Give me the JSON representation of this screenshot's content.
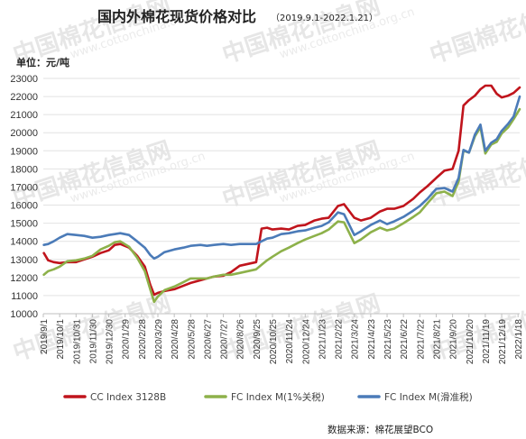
{
  "watermark": {
    "name": "中国棉花信息网",
    "url": "www.cottonchina.org.cn"
  },
  "chart_data": {
    "type": "line",
    "title": "国内外棉花现货价格对比",
    "subtitle": "（2019.9.1-2022.1.21）",
    "ylabel": "单位：元/吨",
    "xlabel": "",
    "ylim": [
      10000,
      23000
    ],
    "yticks": [
      10000,
      11000,
      12000,
      13000,
      14000,
      15000,
      16000,
      17000,
      18000,
      19000,
      20000,
      21000,
      22000,
      23000
    ],
    "xlim": [
      "2019-09-01",
      "2022-01-21"
    ],
    "x_ticks": [
      "2019/9/1",
      "2019/10/1",
      "2019/10/31",
      "2019/11/30",
      "2019/12/30",
      "2020/1/29",
      "2020/2/28",
      "2020/3/29",
      "2020/4/28",
      "2020/5/28",
      "2020/6/27",
      "2020/7/27",
      "2020/8/26",
      "2020/9/25",
      "2020/10/25",
      "2020/11/24",
      "2020/12/24",
      "2021/1/23",
      "2021/2/22",
      "2021/3/24",
      "2021/4/23",
      "2021/5/23",
      "2021/6/22",
      "2021/7/22",
      "2021/8/21",
      "2021/9/20",
      "2021/10/20",
      "2021/11/19",
      "2021/12/19",
      "2022/1/18"
    ],
    "grid": "horizontal",
    "legend_position": "bottom",
    "series": [
      {
        "name": "CC Index 3128B",
        "color": "#c0141c",
        "points": [
          [
            "2019-09-02",
            13350
          ],
          [
            "2019-09-10",
            12950
          ],
          [
            "2019-09-20",
            12850
          ],
          [
            "2019-10-01",
            12800
          ],
          [
            "2019-10-15",
            12850
          ],
          [
            "2019-10-31",
            12850
          ],
          [
            "2019-11-15",
            13000
          ],
          [
            "2019-11-30",
            13150
          ],
          [
            "2019-12-15",
            13350
          ],
          [
            "2019-12-30",
            13500
          ],
          [
            "2020-01-10",
            13800
          ],
          [
            "2020-01-20",
            13850
          ],
          [
            "2020-02-05",
            13650
          ],
          [
            "2020-02-20",
            13200
          ],
          [
            "2020-03-05",
            12600
          ],
          [
            "2020-03-15",
            11600
          ],
          [
            "2020-03-22",
            11050
          ],
          [
            "2020-03-29",
            11150
          ],
          [
            "2020-04-10",
            11250
          ],
          [
            "2020-04-28",
            11350
          ],
          [
            "2020-05-15",
            11550
          ],
          [
            "2020-05-28",
            11700
          ],
          [
            "2020-06-15",
            11850
          ],
          [
            "2020-06-27",
            11950
          ],
          [
            "2020-07-10",
            12050
          ],
          [
            "2020-07-27",
            12100
          ],
          [
            "2020-08-10",
            12300
          ],
          [
            "2020-08-26",
            12650
          ],
          [
            "2020-09-10",
            12750
          ],
          [
            "2020-09-25",
            12850
          ],
          [
            "2020-10-05",
            14700
          ],
          [
            "2020-10-15",
            14750
          ],
          [
            "2020-10-25",
            14650
          ],
          [
            "2020-11-10",
            14700
          ],
          [
            "2020-11-24",
            14650
          ],
          [
            "2020-12-10",
            14850
          ],
          [
            "2020-12-24",
            14900
          ],
          [
            "2021-01-10",
            15150
          ],
          [
            "2021-01-23",
            15250
          ],
          [
            "2021-02-05",
            15300
          ],
          [
            "2021-02-22",
            15950
          ],
          [
            "2021-03-05",
            16050
          ],
          [
            "2021-03-24",
            15300
          ],
          [
            "2021-04-05",
            15150
          ],
          [
            "2021-04-23",
            15300
          ],
          [
            "2021-05-10",
            15650
          ],
          [
            "2021-05-23",
            15800
          ],
          [
            "2021-06-05",
            15800
          ],
          [
            "2021-06-22",
            15950
          ],
          [
            "2021-07-10",
            16350
          ],
          [
            "2021-07-22",
            16700
          ],
          [
            "2021-08-05",
            17050
          ],
          [
            "2021-08-21",
            17500
          ],
          [
            "2021-09-05",
            17900
          ],
          [
            "2021-09-20",
            18000
          ],
          [
            "2021-10-01",
            19000
          ],
          [
            "2021-10-10",
            21500
          ],
          [
            "2021-10-20",
            21800
          ],
          [
            "2021-10-31",
            22050
          ],
          [
            "2021-11-10",
            22400
          ],
          [
            "2021-11-19",
            22600
          ],
          [
            "2021-11-30",
            22600
          ],
          [
            "2021-12-10",
            22150
          ],
          [
            "2021-12-19",
            21950
          ],
          [
            "2021-12-31",
            22050
          ],
          [
            "2022-01-10",
            22200
          ],
          [
            "2022-01-21",
            22500
          ]
        ]
      },
      {
        "name": "FC Index M(1%关税)",
        "color": "#8db14a",
        "points": [
          [
            "2019-09-02",
            12150
          ],
          [
            "2019-09-10",
            12350
          ],
          [
            "2019-09-20",
            12450
          ],
          [
            "2019-10-01",
            12600
          ],
          [
            "2019-10-15",
            12900
          ],
          [
            "2019-10-31",
            12950
          ],
          [
            "2019-11-15",
            13050
          ],
          [
            "2019-11-30",
            13200
          ],
          [
            "2019-12-15",
            13550
          ],
          [
            "2019-12-30",
            13750
          ],
          [
            "2020-01-10",
            13950
          ],
          [
            "2020-01-20",
            14000
          ],
          [
            "2020-02-05",
            13700
          ],
          [
            "2020-02-20",
            13100
          ],
          [
            "2020-03-05",
            12350
          ],
          [
            "2020-03-15",
            11350
          ],
          [
            "2020-03-22",
            10650
          ],
          [
            "2020-03-29",
            10950
          ],
          [
            "2020-04-10",
            11300
          ],
          [
            "2020-04-28",
            11500
          ],
          [
            "2020-05-15",
            11750
          ],
          [
            "2020-05-28",
            11950
          ],
          [
            "2020-06-15",
            11950
          ],
          [
            "2020-06-27",
            11950
          ],
          [
            "2020-07-10",
            12050
          ],
          [
            "2020-07-27",
            12150
          ],
          [
            "2020-08-10",
            12150
          ],
          [
            "2020-08-26",
            12250
          ],
          [
            "2020-09-10",
            12350
          ],
          [
            "2020-09-25",
            12450
          ],
          [
            "2020-10-05",
            12700
          ],
          [
            "2020-10-15",
            12950
          ],
          [
            "2020-10-25",
            13150
          ],
          [
            "2020-11-10",
            13450
          ],
          [
            "2020-11-24",
            13650
          ],
          [
            "2020-12-10",
            13900
          ],
          [
            "2020-12-24",
            14100
          ],
          [
            "2021-01-10",
            14300
          ],
          [
            "2021-01-23",
            14450
          ],
          [
            "2021-02-05",
            14650
          ],
          [
            "2021-02-22",
            15100
          ],
          [
            "2021-03-05",
            15050
          ],
          [
            "2021-03-24",
            13900
          ],
          [
            "2021-04-05",
            14100
          ],
          [
            "2021-04-23",
            14500
          ],
          [
            "2021-05-10",
            14750
          ],
          [
            "2021-05-23",
            14600
          ],
          [
            "2021-06-05",
            14700
          ],
          [
            "2021-06-22",
            15000
          ],
          [
            "2021-07-10",
            15350
          ],
          [
            "2021-07-22",
            15600
          ],
          [
            "2021-08-05",
            16100
          ],
          [
            "2021-08-21",
            16650
          ],
          [
            "2021-09-05",
            16750
          ],
          [
            "2021-09-20",
            16500
          ],
          [
            "2021-10-01",
            17300
          ],
          [
            "2021-10-10",
            19000
          ],
          [
            "2021-10-20",
            18900
          ],
          [
            "2021-10-31",
            19800
          ],
          [
            "2021-11-10",
            20300
          ],
          [
            "2021-11-19",
            18850
          ],
          [
            "2021-11-30",
            19350
          ],
          [
            "2021-12-10",
            19500
          ],
          [
            "2021-12-19",
            19950
          ],
          [
            "2021-12-31",
            20300
          ],
          [
            "2022-01-10",
            20750
          ],
          [
            "2022-01-21",
            21300
          ]
        ]
      },
      {
        "name": "FC Index M(滑准税)",
        "color": "#4b7bb8",
        "points": [
          [
            "2019-09-02",
            13800
          ],
          [
            "2019-09-10",
            13850
          ],
          [
            "2019-09-20",
            14000
          ],
          [
            "2019-10-01",
            14200
          ],
          [
            "2019-10-15",
            14400
          ],
          [
            "2019-10-31",
            14350
          ],
          [
            "2019-11-15",
            14300
          ],
          [
            "2019-11-30",
            14200
          ],
          [
            "2019-12-15",
            14250
          ],
          [
            "2019-12-30",
            14350
          ],
          [
            "2020-01-10",
            14400
          ],
          [
            "2020-01-20",
            14450
          ],
          [
            "2020-02-05",
            14350
          ],
          [
            "2020-02-20",
            14000
          ],
          [
            "2020-03-05",
            13650
          ],
          [
            "2020-03-15",
            13250
          ],
          [
            "2020-03-22",
            13050
          ],
          [
            "2020-03-29",
            13150
          ],
          [
            "2020-04-10",
            13400
          ],
          [
            "2020-04-28",
            13550
          ],
          [
            "2020-05-15",
            13650
          ],
          [
            "2020-05-28",
            13750
          ],
          [
            "2020-06-15",
            13800
          ],
          [
            "2020-06-27",
            13750
          ],
          [
            "2020-07-10",
            13800
          ],
          [
            "2020-07-27",
            13850
          ],
          [
            "2020-08-10",
            13800
          ],
          [
            "2020-08-26",
            13850
          ],
          [
            "2020-09-10",
            13850
          ],
          [
            "2020-09-25",
            13850
          ],
          [
            "2020-10-05",
            14000
          ],
          [
            "2020-10-15",
            14150
          ],
          [
            "2020-10-25",
            14200
          ],
          [
            "2020-11-10",
            14400
          ],
          [
            "2020-11-24",
            14450
          ],
          [
            "2020-12-10",
            14550
          ],
          [
            "2020-12-24",
            14600
          ],
          [
            "2021-01-10",
            14750
          ],
          [
            "2021-01-23",
            14850
          ],
          [
            "2021-02-05",
            15050
          ],
          [
            "2021-02-22",
            15600
          ],
          [
            "2021-03-05",
            15500
          ],
          [
            "2021-03-24",
            14350
          ],
          [
            "2021-04-05",
            14550
          ],
          [
            "2021-04-23",
            14900
          ],
          [
            "2021-05-10",
            15150
          ],
          [
            "2021-05-23",
            14950
          ],
          [
            "2021-06-05",
            15100
          ],
          [
            "2021-06-22",
            15350
          ],
          [
            "2021-07-10",
            15700
          ],
          [
            "2021-07-22",
            15950
          ],
          [
            "2021-08-05",
            16350
          ],
          [
            "2021-08-21",
            16900
          ],
          [
            "2021-09-05",
            16950
          ],
          [
            "2021-09-20",
            16750
          ],
          [
            "2021-10-01",
            17500
          ],
          [
            "2021-10-10",
            19050
          ],
          [
            "2021-10-20",
            18900
          ],
          [
            "2021-10-31",
            19900
          ],
          [
            "2021-11-10",
            20450
          ],
          [
            "2021-11-19",
            19000
          ],
          [
            "2021-11-30",
            19450
          ],
          [
            "2021-12-10",
            19650
          ],
          [
            "2021-12-19",
            20100
          ],
          [
            "2021-12-31",
            20500
          ],
          [
            "2022-01-10",
            20900
          ],
          [
            "2022-01-21",
            22000
          ]
        ]
      }
    ]
  },
  "source": "数据来源：棉花展望BCO"
}
